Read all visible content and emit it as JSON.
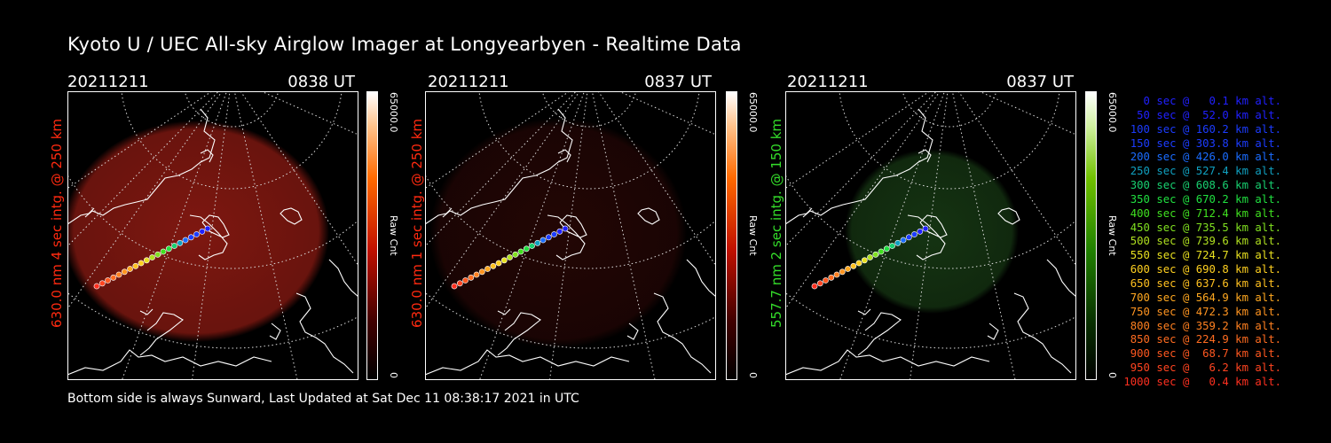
{
  "title": "Kyoto U / UEC All-sky Airglow Imager at Longyearbyen - Realtime Data",
  "footer": "Bottom side is always Sunward, Last Updated at Sat Dec 11 08:38:17 2021 in UTC",
  "panels": [
    {
      "date": "20211211",
      "time": "0838 UT",
      "ylabel": "630.0 nm 4 sec intg. @ 250 km",
      "ylabel_color": "#ff2a10",
      "cbar_max": "65000.0",
      "cbar_min": "0",
      "cbar_label": "Raw Cnt",
      "cbar_color": "#ff3000",
      "glow_color": "#8c1a12",
      "glow_level": 0.55
    },
    {
      "date": "20211211",
      "time": "0837 UT",
      "ylabel": "630.0 nm 1 sec intg. @ 250 km",
      "ylabel_color": "#ff2a10",
      "cbar_max": "65000.0",
      "cbar_min": "0",
      "cbar_label": "Raw Cnt",
      "cbar_color": "#ff3000",
      "glow_color": "#3a0a08",
      "glow_level": 0.25
    },
    {
      "date": "20211211",
      "time": "0837 UT",
      "ylabel": "557.7 nm 2 sec intg. @ 150 km",
      "ylabel_color": "#34dd2a",
      "cbar_max": "65000.0",
      "cbar_min": "0",
      "cbar_label": "Raw Cnt",
      "cbar_color": "#30b000",
      "glow_color": "#1e4a1a",
      "glow_level": 0.35
    }
  ],
  "legend": [
    {
      "text": "0 sec @   0.1 km alt.",
      "color": "#2020ff"
    },
    {
      "text": "50 sec @  52.0 km alt.",
      "color": "#2020ff"
    },
    {
      "text": "100 sec @ 160.2 km alt.",
      "color": "#1c3cff"
    },
    {
      "text": "150 sec @ 303.8 km alt.",
      "color": "#1c3cff"
    },
    {
      "text": "200 sec @ 426.0 km alt.",
      "color": "#1a6cff"
    },
    {
      "text": "250 sec @ 527.4 km alt.",
      "color": "#10a0c0"
    },
    {
      "text": "300 sec @ 608.6 km alt.",
      "color": "#18d070"
    },
    {
      "text": "350 sec @ 670.2 km alt.",
      "color": "#20e040"
    },
    {
      "text": "400 sec @ 712.4 km alt.",
      "color": "#40e020"
    },
    {
      "text": "450 sec @ 735.5 km alt.",
      "color": "#80e020"
    },
    {
      "text": "500 sec @ 739.6 km alt.",
      "color": "#b0e020"
    },
    {
      "text": "550 sec @ 724.7 km alt.",
      "color": "#e8e020"
    },
    {
      "text": "600 sec @ 690.8 km alt.",
      "color": "#ffd020"
    },
    {
      "text": "650 sec @ 637.6 km alt.",
      "color": "#ffc020"
    },
    {
      "text": "700 sec @ 564.9 km alt.",
      "color": "#ffa820"
    },
    {
      "text": "750 sec @ 472.3 km alt.",
      "color": "#ff9420"
    },
    {
      "text": "800 sec @ 359.2 km alt.",
      "color": "#ff8020"
    },
    {
      "text": "850 sec @ 224.9 km alt.",
      "color": "#ff6c20"
    },
    {
      "text": "900 sec @  68.7 km alt.",
      "color": "#ff5820"
    },
    {
      "text": "950 sec @   6.2 km alt.",
      "color": "#ff4420"
    },
    {
      "text": "1000 sec @   0.4 km alt.",
      "color": "#ff3020"
    }
  ]
}
